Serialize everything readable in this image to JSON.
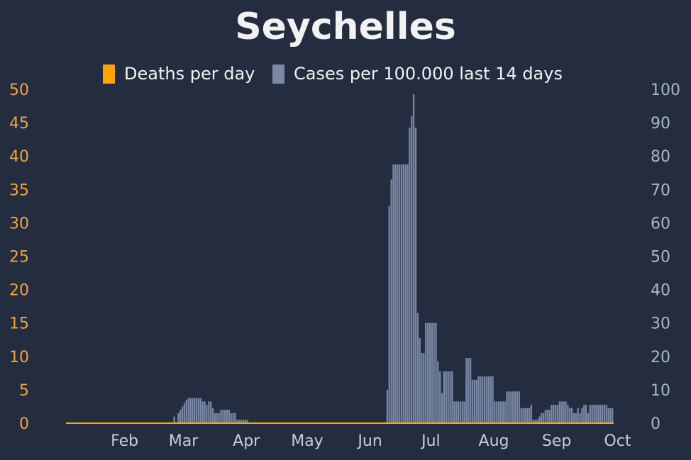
{
  "chart_data": {
    "type": "bar",
    "title": "Seychelles",
    "legend": [
      {
        "name": "Deaths per day",
        "color": "#ffa500"
      },
      {
        "name": "Cases per 100.000 last 14 days",
        "color": "#7a89a6"
      }
    ],
    "left_axis": {
      "ylim": [
        0,
        50
      ],
      "ticks": [
        0,
        5,
        10,
        15,
        20,
        25,
        30,
        35,
        40,
        45,
        50
      ],
      "color": "#f2a33a"
    },
    "right_axis": {
      "ylim": [
        0,
        100
      ],
      "ticks": [
        0,
        10,
        20,
        30,
        40,
        50,
        60,
        70,
        80,
        90,
        100
      ],
      "color": "#a9b6cc"
    },
    "x_ticks": [
      "Feb",
      "Mar",
      "Apr",
      "May",
      "Jun",
      "Jul",
      "Aug",
      "Sep",
      "Oct"
    ],
    "x_tick_days": [
      31,
      60,
      91,
      121,
      152,
      182,
      213,
      244,
      274
    ],
    "day_range": [
      0,
      270
    ],
    "deaths_per_day": 0,
    "cases_per_100k_14d": [
      [
        53,
        2
      ],
      [
        55,
        3
      ],
      [
        56,
        4
      ],
      [
        57,
        5
      ],
      [
        58,
        6
      ],
      [
        59,
        7
      ],
      [
        60,
        7.5
      ],
      [
        61,
        7.5
      ],
      [
        62,
        7.5
      ],
      [
        63,
        7.5
      ],
      [
        64,
        7.5
      ],
      [
        65,
        7.5
      ],
      [
        66,
        7.5
      ],
      [
        67,
        6.5
      ],
      [
        68,
        6.5
      ],
      [
        69,
        5.5
      ],
      [
        70,
        6.5
      ],
      [
        71,
        6.5
      ],
      [
        72,
        4.5
      ],
      [
        73,
        3
      ],
      [
        74,
        3
      ],
      [
        75,
        3
      ],
      [
        76,
        4
      ],
      [
        77,
        4
      ],
      [
        78,
        4
      ],
      [
        79,
        4
      ],
      [
        80,
        4
      ],
      [
        81,
        3
      ],
      [
        82,
        3
      ],
      [
        83,
        3
      ],
      [
        84,
        1
      ],
      [
        85,
        1
      ],
      [
        86,
        1
      ],
      [
        87,
        1
      ],
      [
        88,
        1
      ],
      [
        89,
        1
      ],
      [
        158,
        10
      ],
      [
        159,
        65
      ],
      [
        160,
        73
      ],
      [
        161,
        77.5
      ],
      [
        162,
        77.5
      ],
      [
        163,
        77.5
      ],
      [
        164,
        77.5
      ],
      [
        165,
        77.5
      ],
      [
        166,
        77.5
      ],
      [
        167,
        77.5
      ],
      [
        168,
        77.5
      ],
      [
        169,
        88.5
      ],
      [
        170,
        92
      ],
      [
        171,
        98.5
      ],
      [
        172,
        88.5
      ],
      [
        173,
        33
      ],
      [
        174,
        25.5
      ],
      [
        175,
        21
      ],
      [
        176,
        21
      ],
      [
        177,
        30
      ],
      [
        178,
        30
      ],
      [
        179,
        30
      ],
      [
        180,
        30
      ],
      [
        181,
        30
      ],
      [
        182,
        30
      ],
      [
        183,
        18.5
      ],
      [
        184,
        15.5
      ],
      [
        185,
        9
      ],
      [
        186,
        15.5
      ],
      [
        187,
        15.5
      ],
      [
        188,
        15.5
      ],
      [
        189,
        15.5
      ],
      [
        190,
        15.5
      ],
      [
        191,
        6.5
      ],
      [
        192,
        6.5
      ],
      [
        193,
        6.5
      ],
      [
        194,
        6.5
      ],
      [
        195,
        6.5
      ],
      [
        196,
        6.5
      ],
      [
        197,
        19.5
      ],
      [
        198,
        19.5
      ],
      [
        199,
        19.5
      ],
      [
        200,
        13
      ],
      [
        201,
        13
      ],
      [
        202,
        13
      ],
      [
        203,
        14
      ],
      [
        204,
        14
      ],
      [
        205,
        14
      ],
      [
        206,
        14
      ],
      [
        207,
        14
      ],
      [
        208,
        14
      ],
      [
        209,
        14
      ],
      [
        210,
        14
      ],
      [
        211,
        6.5
      ],
      [
        212,
        6.5
      ],
      [
        213,
        6.5
      ],
      [
        214,
        6.5
      ],
      [
        215,
        6.5
      ],
      [
        216,
        6.5
      ],
      [
        217,
        9.5
      ],
      [
        218,
        9.5
      ],
      [
        219,
        9.5
      ],
      [
        220,
        9.5
      ],
      [
        221,
        9.5
      ],
      [
        222,
        9.5
      ],
      [
        223,
        9.5
      ],
      [
        224,
        4.5
      ],
      [
        225,
        4.5
      ],
      [
        226,
        4.5
      ],
      [
        227,
        4.5
      ],
      [
        228,
        4.5
      ],
      [
        229,
        5.5
      ],
      [
        230,
        1
      ],
      [
        231,
        1
      ],
      [
        232,
        1
      ],
      [
        233,
        2
      ],
      [
        234,
        3
      ],
      [
        235,
        3
      ],
      [
        236,
        4
      ],
      [
        237,
        4
      ],
      [
        238,
        4
      ],
      [
        239,
        5.5
      ],
      [
        240,
        5.5
      ],
      [
        241,
        5.5
      ],
      [
        242,
        5.5
      ],
      [
        243,
        6.5
      ],
      [
        244,
        6.5
      ],
      [
        245,
        6.5
      ],
      [
        246,
        6.5
      ],
      [
        247,
        5.5
      ],
      [
        248,
        4.5
      ],
      [
        249,
        4.5
      ],
      [
        250,
        3
      ],
      [
        251,
        3
      ],
      [
        252,
        4.5
      ],
      [
        253,
        3
      ],
      [
        254,
        4.5
      ],
      [
        255,
        5.5
      ],
      [
        256,
        5.5
      ],
      [
        257,
        3
      ],
      [
        258,
        5.5
      ],
      [
        259,
        5.5
      ],
      [
        260,
        5.5
      ],
      [
        261,
        5.5
      ],
      [
        262,
        5.5
      ],
      [
        263,
        5.5
      ],
      [
        264,
        5.5
      ],
      [
        265,
        5.5
      ],
      [
        266,
        5.5
      ],
      [
        267,
        4.5
      ],
      [
        268,
        4.5
      ],
      [
        269,
        4.5
      ]
    ]
  }
}
